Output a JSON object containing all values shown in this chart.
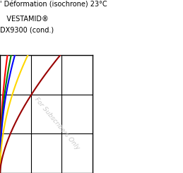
{
  "title_line1": "' Déformation (isochrone) 23°C",
  "title_line2": "   VESTAMID®",
  "title_line3": "DX9300 (cond.)",
  "watermark": "For Subscribers Only",
  "curve_params": [
    {
      "color": "#FF0000",
      "a": 0.08,
      "b": 2.2
    },
    {
      "color": "#008000",
      "a": 0.12,
      "b": 2.2
    },
    {
      "color": "#0000FF",
      "a": 0.16,
      "b": 2.2
    },
    {
      "color": "#FFD700",
      "a": 0.3,
      "b": 2.0
    },
    {
      "color": "#990000",
      "a": 0.65,
      "b": 1.6
    }
  ],
  "background_color": "#ffffff",
  "grid_color": "#000000",
  "watermark_color": "#c8c8c8"
}
